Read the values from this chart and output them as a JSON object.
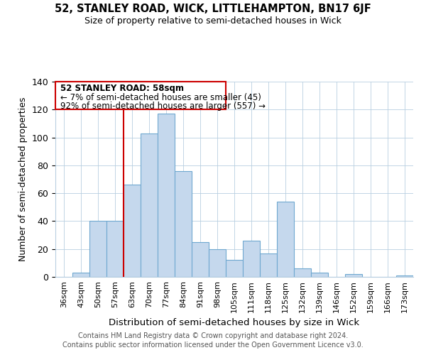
{
  "title": "52, STANLEY ROAD, WICK, LITTLEHAMPTON, BN17 6JF",
  "subtitle": "Size of property relative to semi-detached houses in Wick",
  "xlabel": "Distribution of semi-detached houses by size in Wick",
  "ylabel": "Number of semi-detached properties",
  "bar_labels": [
    "36sqm",
    "43sqm",
    "50sqm",
    "57sqm",
    "63sqm",
    "70sqm",
    "77sqm",
    "84sqm",
    "91sqm",
    "98sqm",
    "105sqm",
    "111sqm",
    "118sqm",
    "125sqm",
    "132sqm",
    "139sqm",
    "146sqm",
    "152sqm",
    "159sqm",
    "166sqm",
    "173sqm"
  ],
  "bar_heights": [
    0,
    3,
    40,
    40,
    66,
    103,
    117,
    76,
    25,
    20,
    12,
    26,
    17,
    54,
    6,
    3,
    0,
    2,
    0,
    0,
    1
  ],
  "bar_color": "#c5d8ed",
  "bar_edge_color": "#6fa8d0",
  "vline_x": 3.5,
  "vline_color": "#cc0000",
  "annotation_title": "52 STANLEY ROAD: 58sqm",
  "annotation_line1": "← 7% of semi-detached houses are smaller (45)",
  "annotation_line2": "92% of semi-detached houses are larger (557) →",
  "annotation_box_edge": "#cc0000",
  "ylim": [
    0,
    140
  ],
  "yticks": [
    0,
    20,
    40,
    60,
    80,
    100,
    120,
    140
  ],
  "footer1": "Contains HM Land Registry data © Crown copyright and database right 2024.",
  "footer2": "Contains public sector information licensed under the Open Government Licence v3.0."
}
